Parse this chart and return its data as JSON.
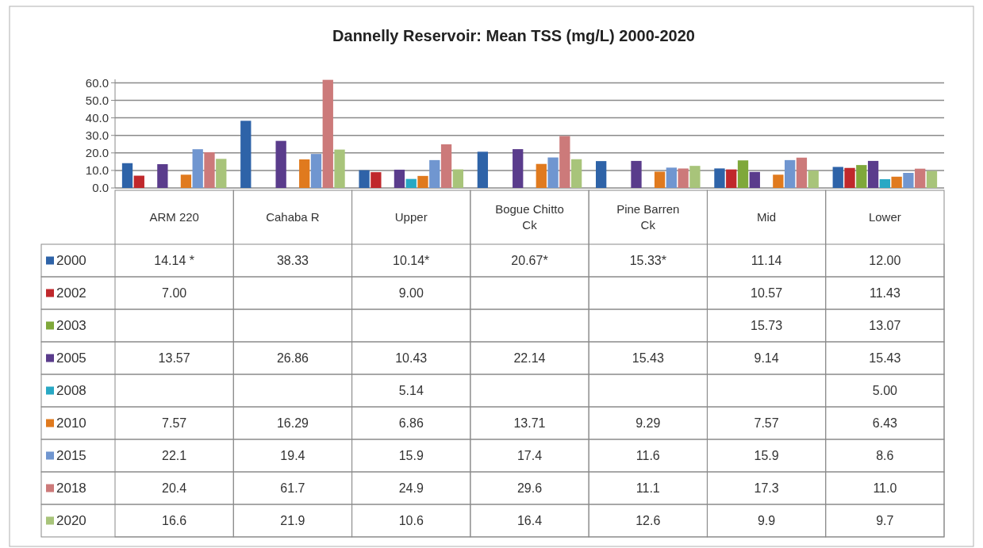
{
  "chart_data": {
    "type": "bar",
    "title": "Dannelly Reservoir: Mean TSS (mg/L) 2000-2020",
    "categories": [
      "ARM 220",
      "Cahaba R",
      "Upper",
      "Bogue Chitto Ck",
      "Pine Barren Ck",
      "Mid",
      "Lower"
    ],
    "series": [
      {
        "name": "2000",
        "color": "#2e63a8",
        "values": [
          14.14,
          38.33,
          10.14,
          20.67,
          15.33,
          11.14,
          12.0
        ],
        "value_labels": [
          "14.14 *",
          "38.33",
          "10.14*",
          "20.67*",
          "15.33*",
          "11.14",
          "12.00"
        ]
      },
      {
        "name": "2002",
        "color": "#c0282c",
        "values": [
          7.0,
          null,
          9.0,
          null,
          null,
          10.57,
          11.43
        ],
        "value_labels": [
          "7.00",
          null,
          "9.00",
          null,
          null,
          "10.57",
          "11.43"
        ]
      },
      {
        "name": "2003",
        "color": "#7fa83a",
        "values": [
          null,
          null,
          null,
          null,
          null,
          15.73,
          13.07
        ],
        "value_labels": [
          null,
          null,
          null,
          null,
          null,
          "15.73",
          "13.07"
        ]
      },
      {
        "name": "2005",
        "color": "#5a3c8c",
        "values": [
          13.57,
          26.86,
          10.43,
          22.14,
          15.43,
          9.14,
          15.43
        ],
        "value_labels": [
          "13.57",
          "26.86",
          "10.43",
          "22.14",
          "15.43",
          "9.14",
          "15.43"
        ]
      },
      {
        "name": "2008",
        "color": "#28a8c4",
        "values": [
          null,
          null,
          5.14,
          null,
          null,
          null,
          5.0
        ],
        "value_labels": [
          null,
          null,
          "5.14",
          null,
          null,
          null,
          "5.00"
        ]
      },
      {
        "name": "2010",
        "color": "#e07a1e",
        "values": [
          7.57,
          16.29,
          6.86,
          13.71,
          9.29,
          7.57,
          6.43
        ],
        "value_labels": [
          "7.57",
          "16.29",
          "6.86",
          "13.71",
          "9.29",
          "7.57",
          "6.43"
        ]
      },
      {
        "name": "2015",
        "color": "#7096d0",
        "values": [
          22.1,
          19.4,
          15.9,
          17.4,
          11.6,
          15.9,
          8.6
        ],
        "value_labels": [
          "22.1",
          "19.4",
          "15.9",
          "17.4",
          "11.6",
          "15.9",
          "8.6"
        ]
      },
      {
        "name": "2018",
        "color": "#cc7a7a",
        "values": [
          20.4,
          61.7,
          24.9,
          29.6,
          11.1,
          17.3,
          11.0
        ],
        "value_labels": [
          "20.4",
          "61.7",
          "24.9",
          "29.6",
          "11.1",
          "17.3",
          "11.0"
        ]
      },
      {
        "name": "2020",
        "color": "#a8c47a",
        "values": [
          16.6,
          21.9,
          10.6,
          16.4,
          12.6,
          9.9,
          9.7
        ],
        "value_labels": [
          "16.6",
          "21.9",
          "10.6",
          "16.4",
          "12.6",
          "9.9",
          "9.7"
        ]
      }
    ],
    "ylim": [
      0,
      62
    ],
    "yticks": [
      {
        "value": 0,
        "label": "0.0"
      },
      {
        "value": 10,
        "label": "10.0"
      },
      {
        "value": 20,
        "label": "20.0"
      },
      {
        "value": 30,
        "label": "30.0"
      },
      {
        "value": 40,
        "label": "40.0"
      },
      {
        "value": 50,
        "label": "50.0"
      },
      {
        "value": 60,
        "label": "60.0"
      }
    ],
    "grid": "y",
    "legend": "bottom"
  }
}
